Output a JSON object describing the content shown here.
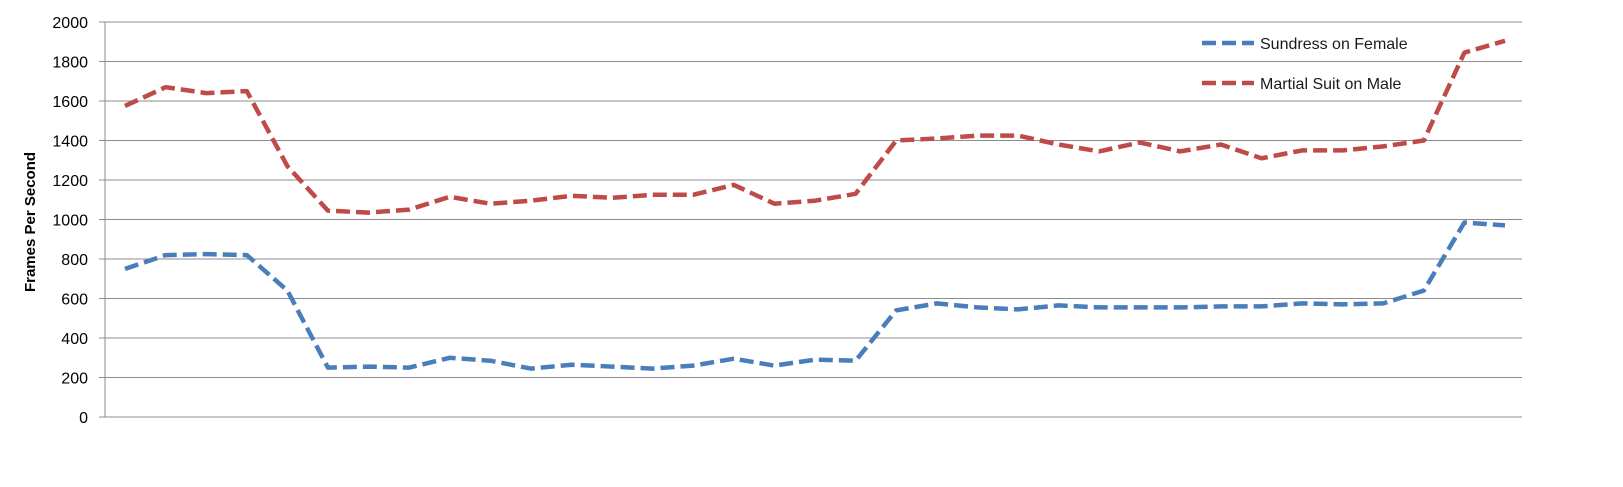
{
  "chart_data": {
    "type": "line",
    "title": "",
    "xlabel": "",
    "ylabel": "Frames Per Second",
    "ylim": [
      0,
      2000
    ],
    "yticks": [
      0,
      200,
      400,
      600,
      800,
      1000,
      1200,
      1400,
      1600,
      1800,
      2000
    ],
    "grid": true,
    "legend_position": "top-right",
    "x": [
      1,
      2,
      3,
      4,
      5,
      6,
      7,
      8,
      9,
      10,
      11,
      12,
      13,
      14,
      15,
      16,
      17,
      18,
      19,
      20,
      21,
      22,
      23,
      24,
      25,
      26,
      27,
      28,
      29,
      30,
      31,
      32,
      33,
      34,
      35
    ],
    "series": [
      {
        "name": "Sundress on Female",
        "color": "#4a7ebb",
        "line_style": "dashed",
        "values": [
          750,
          820,
          825,
          820,
          640,
          250,
          255,
          250,
          300,
          285,
          245,
          265,
          255,
          245,
          260,
          295,
          260,
          290,
          285,
          540,
          575,
          555,
          545,
          565,
          555,
          555,
          555,
          560,
          560,
          575,
          570,
          575,
          640,
          985,
          970
        ]
      },
      {
        "name": "Martial Suit on Male",
        "color": "#be4b48",
        "line_style": "dashed",
        "values": [
          1575,
          1670,
          1640,
          1650,
          1270,
          1045,
          1035,
          1050,
          1115,
          1080,
          1095,
          1120,
          1110,
          1125,
          1125,
          1175,
          1080,
          1095,
          1130,
          1400,
          1410,
          1425,
          1425,
          1380,
          1345,
          1390,
          1345,
          1380,
          1310,
          1350,
          1350,
          1370,
          1400,
          1845,
          1905
        ]
      }
    ]
  }
}
